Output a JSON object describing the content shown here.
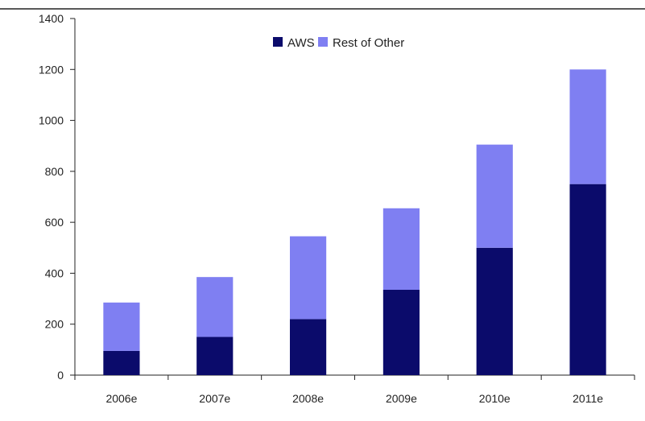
{
  "chart_data": {
    "type": "bar",
    "stacked": true,
    "title": "",
    "xlabel": "",
    "ylabel": "",
    "categories": [
      "2006e",
      "2007e",
      "2008e",
      "2009e",
      "2010e",
      "2011e"
    ],
    "series": [
      {
        "name": "AWS",
        "color": "#0b0b6b",
        "values": [
          95,
          150,
          220,
          335,
          500,
          750
        ]
      },
      {
        "name": "Rest of Other",
        "color": "#7f7ff2",
        "values": [
          190,
          235,
          325,
          320,
          405,
          450
        ]
      }
    ],
    "ylim": [
      0,
      1400
    ],
    "yticks": [
      0,
      200,
      400,
      600,
      800,
      1000,
      1200,
      1400
    ],
    "grid": false,
    "legend_position": "top-center"
  }
}
